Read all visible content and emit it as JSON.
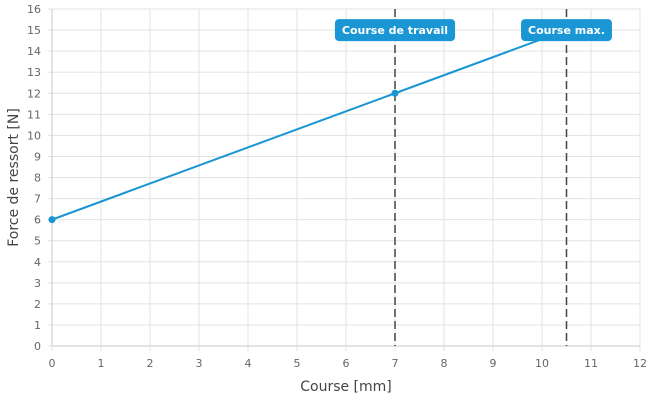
{
  "chart_data": {
    "type": "line",
    "xlabel": "Course [mm]",
    "ylabel": "Force de ressort [N]",
    "xlim": [
      0,
      12
    ],
    "ylim": [
      0,
      16
    ],
    "x_ticks": [
      0,
      1,
      2,
      3,
      4,
      5,
      6,
      7,
      8,
      9,
      10,
      11,
      12
    ],
    "y_ticks": [
      0,
      1,
      2,
      3,
      4,
      5,
      6,
      7,
      8,
      9,
      10,
      11,
      12,
      13,
      14,
      15,
      16
    ],
    "grid": true,
    "series": [
      {
        "color": "#1a96d4",
        "points": [
          {
            "x": 0,
            "y": 6
          },
          {
            "x": 7,
            "y": 12
          },
          {
            "x": 10.5,
            "y": 15
          }
        ],
        "markers": [
          {
            "x": 0,
            "y": 6
          },
          {
            "x": 7,
            "y": 12
          }
        ]
      }
    ],
    "reference_lines": [
      {
        "x": 7,
        "label": "Course de travail"
      },
      {
        "x": 10.5,
        "label": "Course max."
      }
    ],
    "callout_color": "#1a96d4"
  }
}
